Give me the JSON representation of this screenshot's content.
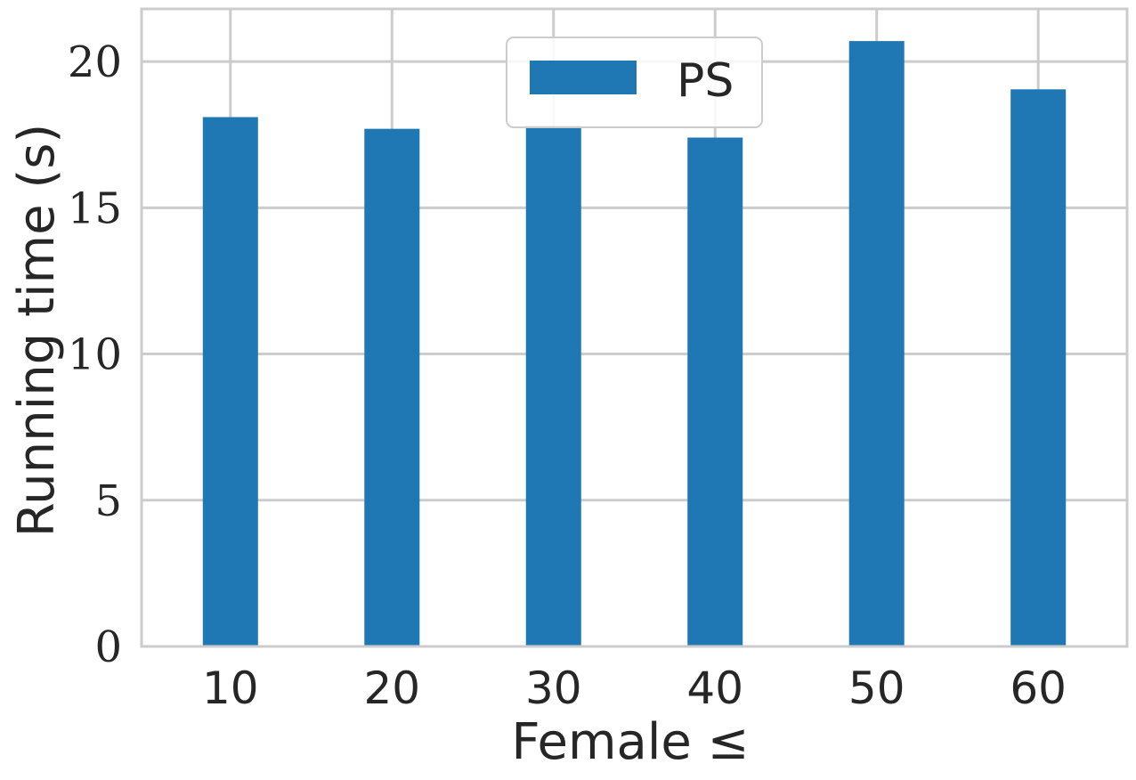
{
  "chart_data": {
    "type": "bar",
    "categories": [
      "10",
      "20",
      "30",
      "40",
      "50",
      "60"
    ],
    "series": [
      {
        "name": "PS",
        "values": [
          18.1,
          17.7,
          17.8,
          17.4,
          20.7,
          19.05
        ]
      }
    ],
    "xlabel": "Female ≤",
    "ylabel": "Running time (s)",
    "ylim": [
      0,
      21.8
    ],
    "yticks": [
      0,
      5,
      10,
      15,
      20
    ],
    "grid": true,
    "legend_position": "top-center",
    "colors": {
      "bar": "#1f77b4",
      "grid": "#cccccc",
      "text": "#262626"
    }
  }
}
